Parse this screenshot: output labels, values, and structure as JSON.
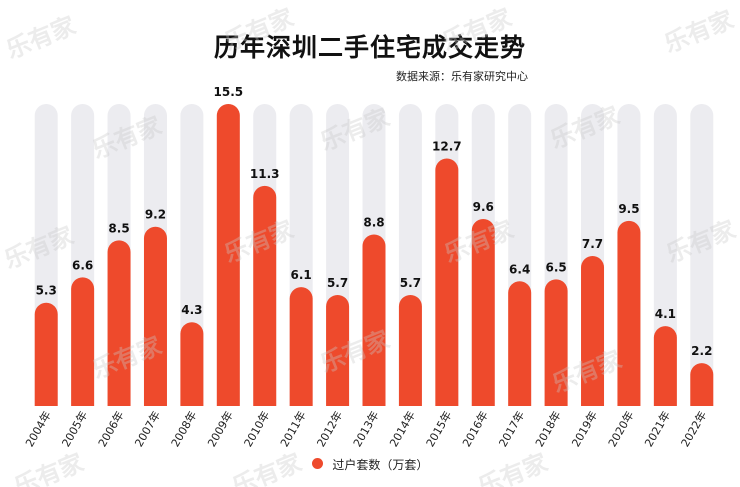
{
  "watermark_text": "乐有家",
  "chart_data": {
    "type": "bar",
    "title": "历年深圳二手住宅成交走势",
    "source": "数据来源：乐有家研究中心",
    "categories": [
      "2004年",
      "2005年",
      "2006年",
      "2007年",
      "2008年",
      "2009年",
      "2010年",
      "2011年",
      "2012年",
      "2013年",
      "2014年",
      "2015年",
      "2016年",
      "2017年",
      "2018年",
      "2019年",
      "2020年",
      "2021年",
      "2022年"
    ],
    "series": [
      {
        "name": "过户套数（万套）",
        "values": [
          5.3,
          6.6,
          8.5,
          9.2,
          4.3,
          15.5,
          11.3,
          6.1,
          5.7,
          8.8,
          5.7,
          12.7,
          9.6,
          6.4,
          6.5,
          7.7,
          9.5,
          4.1,
          2.2
        ],
        "labels": [
          "5.3",
          "6.6",
          "8.5",
          "9.2",
          "4.3",
          "15.5",
          "11.3",
          "6.1",
          "5.7",
          "8.8",
          "5.7",
          "12.7",
          "9.6",
          "6.4",
          "6.5",
          "7.7",
          "9.5",
          "4.1",
          "2.2"
        ]
      }
    ],
    "ylim": [
      0,
      15.5
    ],
    "bar_color": "#ee4a2c",
    "track_color": "#ececf0",
    "legend_position": "bottom",
    "grid": false
  }
}
